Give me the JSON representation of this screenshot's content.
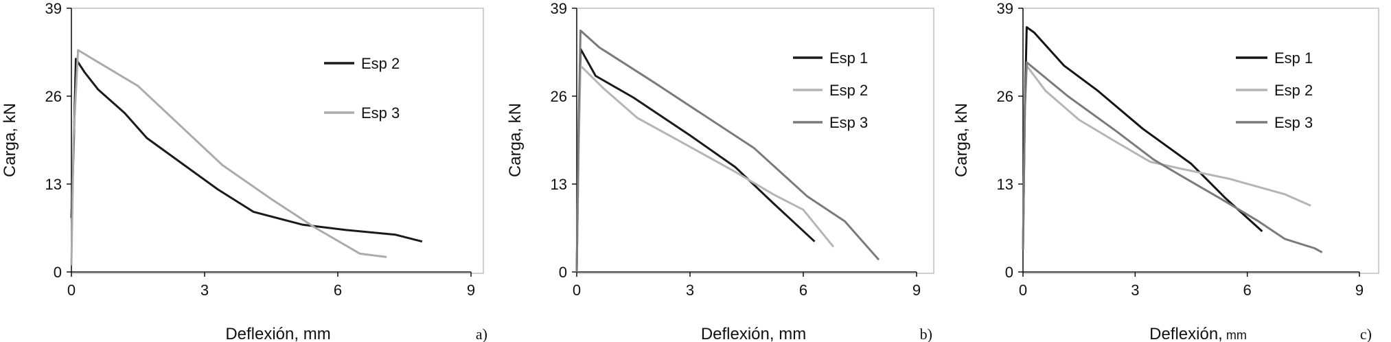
{
  "chart_data": [
    {
      "type": "line",
      "panel_label": "a)",
      "xlabel": "Deflexión, mm",
      "ylabel": "Carga, kN",
      "xlim": [
        0,
        9
      ],
      "ylim": [
        0,
        39
      ],
      "xticks": [
        0,
        3,
        6,
        9
      ],
      "yticks": [
        0,
        13,
        26,
        39
      ],
      "legend_position": "right",
      "series": [
        {
          "name": "Esp 2",
          "color": "#1a1a1a",
          "points": [
            [
              0,
              8
            ],
            [
              0.05,
              18
            ],
            [
              0.1,
              31.5
            ],
            [
              0.3,
              29.5
            ],
            [
              0.6,
              27
            ],
            [
              1.2,
              23.5
            ],
            [
              1.7,
              19.8
            ],
            [
              2.5,
              16
            ],
            [
              3.3,
              12.2
            ],
            [
              4.1,
              8.9
            ],
            [
              5.2,
              7
            ],
            [
              6.2,
              6.2
            ],
            [
              7.3,
              5.5
            ],
            [
              7.9,
              4.5
            ]
          ]
        },
        {
          "name": "Esp 3",
          "color": "#ababab",
          "points": [
            [
              0,
              1
            ],
            [
              0.05,
              20
            ],
            [
              0.15,
              32.8
            ],
            [
              1.5,
              27.5
            ],
            [
              3.4,
              15.8
            ],
            [
              4.5,
              10.8
            ],
            [
              5.5,
              6.5
            ],
            [
              6.5,
              2.7
            ],
            [
              7.1,
              2.2
            ]
          ]
        }
      ]
    },
    {
      "type": "line",
      "panel_label": "b)",
      "xlabel": "Deflexión, mm",
      "ylabel": "Carga, kN",
      "xlim": [
        0,
        9
      ],
      "ylim": [
        0,
        39
      ],
      "xticks": [
        0,
        3,
        6,
        9
      ],
      "yticks": [
        0,
        13,
        26,
        39
      ],
      "legend_position": "right",
      "series": [
        {
          "name": "Esp 1",
          "color": "#1a1a1a",
          "points": [
            [
              0,
              0
            ],
            [
              0.05,
              20
            ],
            [
              0.1,
              33
            ],
            [
              0.5,
              29
            ],
            [
              1.5,
              25.8
            ],
            [
              3,
              20.2
            ],
            [
              4.2,
              15.5
            ],
            [
              5.2,
              10.2
            ],
            [
              6.3,
              4.5
            ]
          ]
        },
        {
          "name": "Esp 2",
          "color": "#b5b5b5",
          "points": [
            [
              0,
              0
            ],
            [
              0.05,
              18
            ],
            [
              0.1,
              30.5
            ],
            [
              0.7,
              27.2
            ],
            [
              1.6,
              22.8
            ],
            [
              3,
              18.5
            ],
            [
              4.2,
              14.8
            ],
            [
              5.2,
              11.5
            ],
            [
              6,
              9.2
            ],
            [
              6.8,
              3.7
            ]
          ]
        },
        {
          "name": "Esp 3",
          "color": "#7a7a7a",
          "points": [
            [
              0,
              0
            ],
            [
              0.05,
              22
            ],
            [
              0.1,
              35.7
            ],
            [
              0.6,
              33.2
            ],
            [
              2,
              28.2
            ],
            [
              4.7,
              18.3
            ],
            [
              6.1,
              11.2
            ],
            [
              7.1,
              7.5
            ],
            [
              8,
              1.8
            ]
          ]
        }
      ]
    },
    {
      "type": "line",
      "panel_label": "c)",
      "xlabel": "Deflexión,",
      "xlabel_unit": "mm",
      "ylabel": "Carga, kN",
      "xlim": [
        0,
        9
      ],
      "ylim": [
        0,
        39
      ],
      "xticks": [
        0,
        3,
        6,
        9
      ],
      "yticks": [
        0,
        13,
        26,
        39
      ],
      "legend_position": "right",
      "series": [
        {
          "name": "Esp 1",
          "color": "#141414",
          "points": [
            [
              0,
              3.3
            ],
            [
              0.05,
              24
            ],
            [
              0.1,
              36.2
            ],
            [
              0.3,
              35.4
            ],
            [
              1.1,
              30.5
            ],
            [
              2,
              26.8
            ],
            [
              3.2,
              21.2
            ],
            [
              4.5,
              16
            ],
            [
              5.4,
              11
            ],
            [
              6.4,
              6
            ]
          ]
        },
        {
          "name": "Esp 2",
          "color": "#b5b5b5",
          "points": [
            [
              0,
              3.3
            ],
            [
              0.05,
              24
            ],
            [
              0.1,
              30.5
            ],
            [
              0.6,
              26.8
            ],
            [
              1.5,
              22.5
            ],
            [
              2.5,
              19.2
            ],
            [
              3.4,
              16.3
            ],
            [
              4.2,
              15.3
            ],
            [
              5.5,
              13.8
            ],
            [
              7,
              11.5
            ],
            [
              7.7,
              9.8
            ]
          ]
        },
        {
          "name": "Esp 3",
          "color": "#7a7a7a",
          "points": [
            [
              0,
              3.3
            ],
            [
              0.05,
              24
            ],
            [
              0.1,
              31
            ],
            [
              1.2,
              26
            ],
            [
              2.5,
              20.8
            ],
            [
              3.5,
              16.6
            ],
            [
              4.3,
              14
            ],
            [
              5.3,
              10.8
            ],
            [
              6.3,
              7.5
            ],
            [
              7,
              4.9
            ],
            [
              7.8,
              3.5
            ],
            [
              8,
              2.9
            ]
          ]
        }
      ]
    }
  ]
}
